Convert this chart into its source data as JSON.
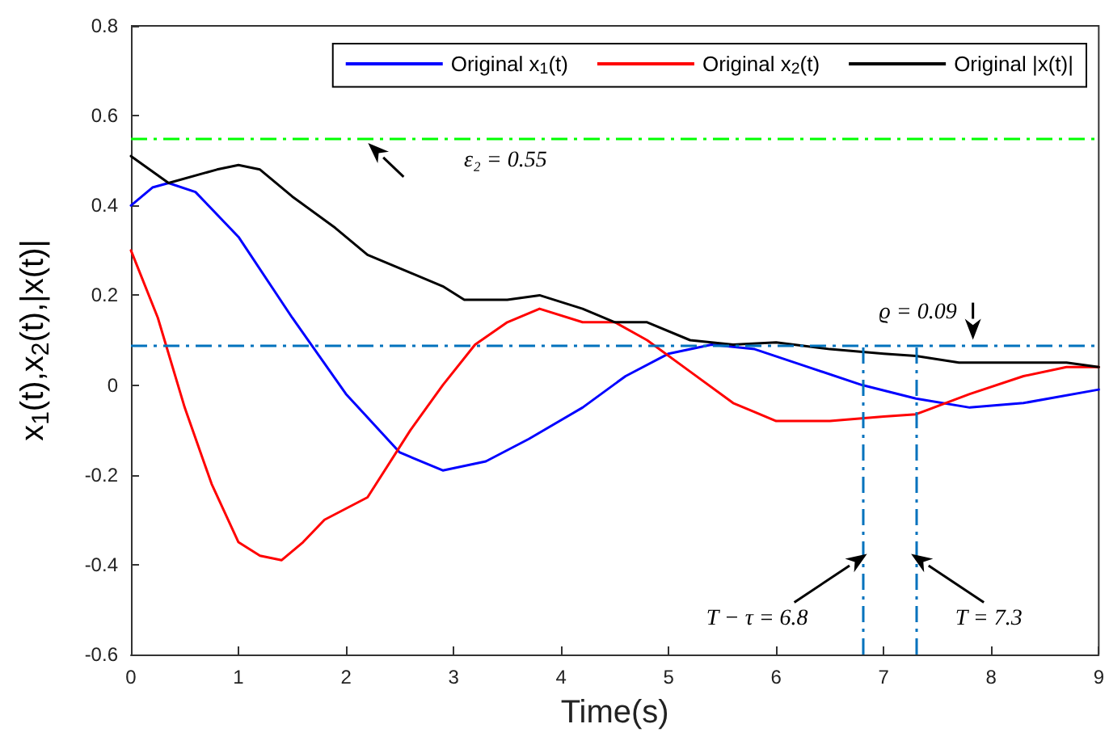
{
  "chart_data": {
    "type": "line",
    "xlabel": "Time(s)",
    "ylabel": "x$_{1}$(t),x$_{2}$(t),|x(t)|",
    "xlim": [
      0,
      9
    ],
    "xticks": [
      0,
      1,
      2,
      3,
      4,
      5,
      6,
      7,
      8,
      9
    ],
    "ylim": [
      -0.6,
      0.8
    ],
    "yticks": [
      -0.6,
      -0.4,
      -0.2,
      0,
      0.2,
      0.4,
      0.6,
      0.8
    ],
    "grid": false,
    "legend": "top right",
    "marker": "none",
    "line_style": "solid",
    "series": [
      {
        "name": "Original x$_{1}$(t)",
        "color": "#0000ff",
        "x": [
          0,
          0.2,
          0.35,
          0.6,
          1.0,
          1.5,
          2.0,
          2.5,
          2.9,
          3.3,
          3.7,
          4.2,
          4.6,
          5.0,
          5.4,
          5.8,
          6.3,
          6.8,
          7.3,
          7.8,
          8.3,
          9
        ],
        "values": [
          0.4,
          0.44,
          0.45,
          0.43,
          0.33,
          0.15,
          -0.02,
          -0.15,
          -0.19,
          -0.17,
          -0.12,
          -0.05,
          0.02,
          0.07,
          0.09,
          0.08,
          0.04,
          0.0,
          -0.03,
          -0.05,
          -0.04,
          -0.01
        ]
      },
      {
        "name": "Original x$_{2}$(t)",
        "color": "#ff0000",
        "x": [
          0,
          0.25,
          0.5,
          0.75,
          1.0,
          1.2,
          1.4,
          1.6,
          1.8,
          2.2,
          2.6,
          2.9,
          3.2,
          3.5,
          3.8,
          4.2,
          4.5,
          4.8,
          5.2,
          5.6,
          6.0,
          6.5,
          7.0,
          7.3,
          7.8,
          8.3,
          8.7,
          9
        ],
        "values": [
          0.3,
          0.15,
          -0.05,
          -0.22,
          -0.35,
          -0.38,
          -0.39,
          -0.35,
          -0.3,
          -0.25,
          -0.1,
          0.0,
          0.09,
          0.14,
          0.17,
          0.14,
          0.14,
          0.1,
          0.03,
          -0.04,
          -0.08,
          -0.08,
          -0.07,
          -0.065,
          -0.02,
          0.02,
          0.04,
          0.04
        ]
      },
      {
        "name": "Original |x(t)|",
        "color": "#000000",
        "x": [
          0,
          0.35,
          0.8,
          1.0,
          1.2,
          1.5,
          1.9,
          2.2,
          2.6,
          2.9,
          3.1,
          3.5,
          3.8,
          4.2,
          4.5,
          4.8,
          5.2,
          5.6,
          6.0,
          6.5,
          7.0,
          7.3,
          7.7,
          8.3,
          8.7,
          9
        ],
        "values": [
          0.51,
          0.45,
          0.48,
          0.49,
          0.48,
          0.42,
          0.35,
          0.29,
          0.25,
          0.22,
          0.19,
          0.19,
          0.2,
          0.17,
          0.14,
          0.14,
          0.1,
          0.09,
          0.095,
          0.08,
          0.07,
          0.065,
          0.05,
          0.05,
          0.05,
          0.04
        ]
      }
    ],
    "ref_lines": [
      {
        "axis": "y",
        "value": 0.55,
        "label": "ε₂ = 0.55",
        "color": "#00ff00",
        "line_style": "dashed"
      },
      {
        "axis": "y",
        "value": 0.09,
        "label": "ϱ = 0.09",
        "color": "#0072bd",
        "line_style": "dashed"
      },
      {
        "axis": "x",
        "value": 6.8,
        "label": "T − τ = 6.8",
        "color": "#0072bd",
        "line_style": "dashed"
      },
      {
        "axis": "x",
        "value": 7.3,
        "label": "T = 7.3",
        "color": "#0072bd",
        "line_style": "dashed"
      }
    ]
  }
}
